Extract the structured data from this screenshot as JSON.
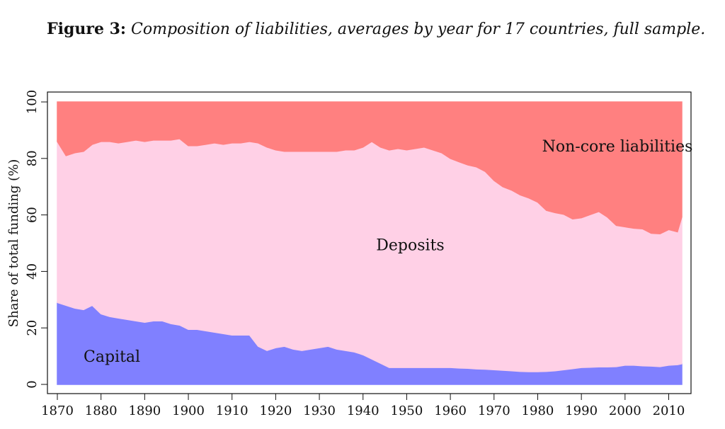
{
  "caption": {
    "label": "Figure 3:",
    "text": "Composition of liabilities, averages by year for 17 countries, full sample."
  },
  "chart_data": {
    "type": "area",
    "stacked": true,
    "ylabel": "Share of total funding (%)",
    "xlabel": "",
    "xlim": [
      1870,
      2013
    ],
    "ylim": [
      0,
      100
    ],
    "xticks": [
      1870,
      1880,
      1890,
      1900,
      1910,
      1920,
      1930,
      1940,
      1950,
      1960,
      1970,
      1980,
      1990,
      2000,
      2010
    ],
    "yticks": [
      0,
      20,
      40,
      60,
      80,
      100
    ],
    "grid": false,
    "legend": "none",
    "annotations": [
      {
        "text": "Capital",
        "x": 1876,
        "y": 9.5
      },
      {
        "text": "Deposits",
        "x": 1943,
        "y": 49
      },
      {
        "text": "Non-core liabilities",
        "x": 1981,
        "y": 84
      }
    ],
    "x": [
      1870,
      1872,
      1874,
      1876,
      1878,
      1880,
      1882,
      1884,
      1886,
      1888,
      1890,
      1892,
      1894,
      1896,
      1898,
      1900,
      1902,
      1904,
      1906,
      1908,
      1910,
      1912,
      1914,
      1916,
      1918,
      1920,
      1922,
      1924,
      1926,
      1928,
      1930,
      1932,
      1934,
      1936,
      1938,
      1940,
      1942,
      1944,
      1946,
      1948,
      1950,
      1952,
      1954,
      1956,
      1958,
      1960,
      1962,
      1964,
      1966,
      1968,
      1970,
      1972,
      1974,
      1976,
      1978,
      1980,
      1982,
      1984,
      1986,
      1988,
      1990,
      1992,
      1994,
      1996,
      1998,
      2000,
      2002,
      2004,
      2006,
      2008,
      2010,
      2012,
      2013
    ],
    "series": [
      {
        "name": "Capital",
        "color": "#8080ff",
        "values": [
          29,
          28,
          27,
          26.5,
          28,
          25,
          24,
          23.5,
          23,
          22.5,
          22,
          22.5,
          22.5,
          21.5,
          21,
          19.5,
          19.5,
          19,
          18.5,
          18,
          17.5,
          17.5,
          17.5,
          13.5,
          12,
          13,
          13.5,
          12.5,
          12,
          12.5,
          13,
          13.5,
          12.5,
          12,
          11.5,
          10.5,
          9,
          7.5,
          6,
          6,
          6,
          6,
          6,
          6,
          6,
          6,
          5.8,
          5.7,
          5.5,
          5.4,
          5.2,
          5.0,
          4.8,
          4.6,
          4.5,
          4.5,
          4.6,
          4.8,
          5.2,
          5.6,
          6.0,
          6.1,
          6.2,
          6.2,
          6.3,
          6.8,
          6.8,
          6.6,
          6.5,
          6.3,
          6.8,
          7.0,
          7.3
        ]
      },
      {
        "name": "Deposits",
        "color": "#ffd0e6",
        "values": [
          57,
          53,
          55,
          56,
          57,
          61,
          62,
          62,
          63,
          64,
          64,
          64,
          64,
          65,
          66,
          65,
          65,
          66,
          67,
          67,
          68,
          68,
          68.5,
          72,
          72,
          70,
          69,
          70,
          70.5,
          70,
          69.5,
          69,
          70,
          71,
          71.5,
          73.5,
          77,
          76.5,
          77,
          77.5,
          77,
          77.5,
          78,
          77,
          76,
          74,
          73,
          72,
          71.5,
          70,
          67,
          65,
          64,
          62.5,
          61.5,
          60,
          57,
          56,
          55,
          53,
          53,
          54,
          55,
          53,
          50,
          49,
          48.5,
          48.5,
          47,
          47,
          48,
          47,
          52
        ]
      },
      {
        "name": "Non-core liabilities",
        "color": "#ff8080",
        "values": [
          14,
          19,
          18,
          17.5,
          15,
          14,
          14,
          14.5,
          14,
          13.5,
          14,
          13.5,
          13.5,
          13.5,
          13,
          15.5,
          15.5,
          15,
          14.5,
          15,
          14.5,
          14.5,
          14,
          14.5,
          16,
          17,
          17.5,
          17.5,
          17.5,
          17.5,
          17.5,
          17.5,
          17.5,
          17,
          17,
          16,
          14,
          16,
          17,
          16.5,
          17,
          16.5,
          16,
          17,
          18,
          20,
          21.2,
          22.3,
          23,
          24.6,
          27.8,
          30,
          31.2,
          32.9,
          34,
          35.5,
          38.4,
          39.2,
          39.8,
          41.4,
          41,
          39.9,
          38.8,
          40.8,
          43.7,
          44.2,
          44.7,
          44.9,
          46.5,
          46.7,
          45.2,
          46,
          40.7
        ]
      }
    ]
  }
}
